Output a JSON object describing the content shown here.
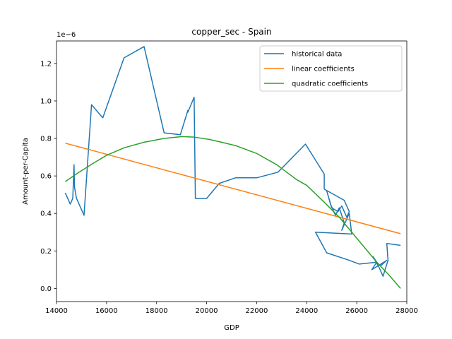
{
  "chart_data": {
    "type": "line",
    "title": "copper_sec - Spain",
    "xlabel": "GDP",
    "ylabel": "Amount-per-Capita",
    "y_offset_label": "1e−6",
    "xlim": [
      14000,
      28000
    ],
    "ylim": [
      -0.07,
      1.32
    ],
    "x_ticks": [
      14000,
      16000,
      18000,
      20000,
      22000,
      24000,
      26000,
      28000
    ],
    "y_ticks": [
      0.0,
      0.2,
      0.4,
      0.6,
      0.8,
      1.0,
      1.2
    ],
    "x_tick_labels": [
      "14000",
      "16000",
      "18000",
      "20000",
      "22000",
      "24000",
      "26000",
      "28000"
    ],
    "y_tick_labels": [
      "0.0",
      "0.2",
      "0.4",
      "0.6",
      "0.8",
      "1.0",
      "1.2"
    ],
    "grid": false,
    "legend_position": "top-right",
    "series": [
      {
        "name": "historical data",
        "color": "#1f77b4",
        "points": [
          [
            14350,
            0.51
          ],
          [
            14550,
            0.45
          ],
          [
            14650,
            0.48
          ],
          [
            14700,
            0.66
          ],
          [
            14720,
            0.54
          ],
          [
            14800,
            0.48
          ],
          [
            15100,
            0.39
          ],
          [
            15400,
            0.98
          ],
          [
            15850,
            0.91
          ],
          [
            16700,
            1.23
          ],
          [
            17500,
            1.29
          ],
          [
            18300,
            0.83
          ],
          [
            18950,
            0.82
          ],
          [
            19250,
            0.95
          ],
          [
            19250,
            0.94
          ],
          [
            19500,
            1.02
          ],
          [
            19550,
            0.48
          ],
          [
            20000,
            0.48
          ],
          [
            20500,
            0.56
          ],
          [
            21150,
            0.59
          ],
          [
            22000,
            0.59
          ],
          [
            22850,
            0.62
          ],
          [
            23950,
            0.77
          ],
          [
            24700,
            0.61
          ],
          [
            24700,
            0.53
          ],
          [
            24350,
            0.3
          ],
          [
            24800,
            0.19
          ],
          [
            25700,
            0.15
          ],
          [
            26100,
            0.13
          ],
          [
            26800,
            0.14
          ],
          [
            26600,
            0.1
          ],
          [
            27200,
            0.15
          ],
          [
            26950,
            0.12
          ],
          [
            26800,
            0.14
          ],
          [
            26650,
            0.17
          ],
          [
            26900,
            0.11
          ],
          [
            27050,
            0.065
          ],
          [
            27250,
            0.15
          ],
          [
            27200,
            0.24
          ],
          [
            27750,
            0.23
          ]
        ],
        "jitter_segment": [
          [
            25500,
            0.47
          ],
          [
            25700,
            0.41
          ],
          [
            25600,
            0.38
          ],
          [
            25400,
            0.44
          ],
          [
            25250,
            0.41
          ],
          [
            25000,
            0.43
          ],
          [
            24800,
            0.52
          ],
          [
            24950,
            0.45
          ],
          [
            25150,
            0.39
          ],
          [
            25300,
            0.43
          ],
          [
            25500,
            0.35
          ],
          [
            25400,
            0.31
          ],
          [
            25700,
            0.4
          ],
          [
            25800,
            0.29
          ]
        ]
      },
      {
        "name": "linear coefficients",
        "color": "#ff7f0e",
        "points": [
          [
            14350,
            0.775
          ],
          [
            27750,
            0.292
          ]
        ]
      },
      {
        "name": "quadratic coefficients",
        "color": "#2ca02c",
        "points": [
          [
            14350,
            0.57
          ],
          [
            14900,
            0.62
          ],
          [
            15500,
            0.67
          ],
          [
            16000,
            0.71
          ],
          [
            16700,
            0.75
          ],
          [
            17500,
            0.78
          ],
          [
            18300,
            0.8
          ],
          [
            19000,
            0.81
          ],
          [
            19500,
            0.807
          ],
          [
            20100,
            0.795
          ],
          [
            20600,
            0.78
          ],
          [
            21200,
            0.76
          ],
          [
            22000,
            0.72
          ],
          [
            22800,
            0.66
          ],
          [
            23600,
            0.58
          ],
          [
            24000,
            0.55
          ],
          [
            24700,
            0.46
          ],
          [
            25300,
            0.38
          ],
          [
            25800,
            0.3
          ],
          [
            26300,
            0.22
          ],
          [
            26800,
            0.14
          ],
          [
            27300,
            0.07
          ],
          [
            27750,
            0.0
          ]
        ]
      }
    ]
  }
}
